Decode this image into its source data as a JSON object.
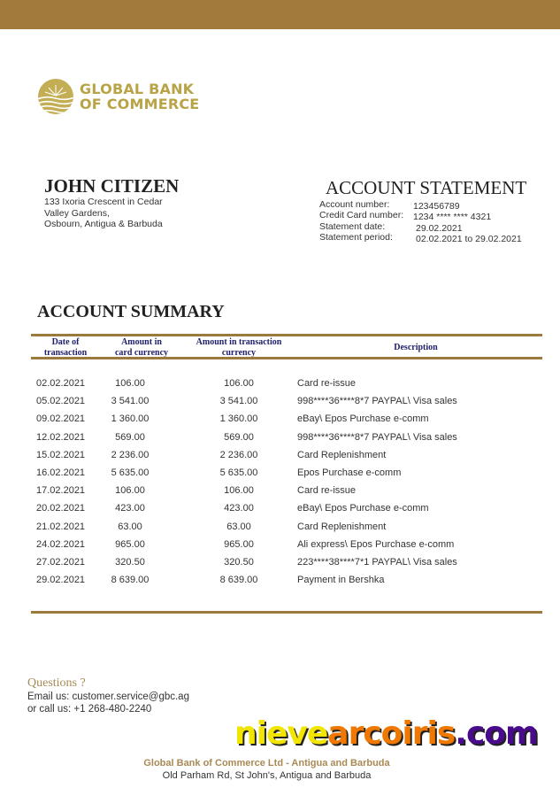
{
  "bank": {
    "logo_line1": "GLOBAL BANK",
    "logo_line2": "OF COMMERCE",
    "brand_color": "#a27b3c",
    "logo_color": "#b9a347"
  },
  "customer": {
    "name": "JOHN CITIZEN",
    "address": [
      "133 Ixoria Crescent in Cedar",
      "Valley Gardens,",
      "Osbourn, Antigua & Barbuda"
    ]
  },
  "statement": {
    "title": "ACCOUNT STATEMENT",
    "labels": [
      "Account number:",
      "Credit Card number:",
      "Statement date:",
      "Statement period:"
    ],
    "values": [
      "123456789",
      "1234 **** **** 4321",
      "29.02.2021",
      "02.02.2021 to 29.02.2021"
    ]
  },
  "summary": {
    "title": "ACCOUNT SUMMARY",
    "headers": {
      "date": [
        "Date of",
        "transaction"
      ],
      "card_amount": [
        "Amount in",
        "card currency"
      ],
      "tx_amount": [
        "Amount in transaction",
        "currency"
      ],
      "description": "Description"
    },
    "rows": [
      {
        "date": "02.02.2021",
        "card": "106.00",
        "tx": "106.00",
        "desc": "Card re-issue"
      },
      {
        "date": "05.02.2021",
        "card": "3 541.00",
        "tx": "3 541.00",
        "desc": "998****36****8*7 PAYPAL\\ Visa sales"
      },
      {
        "date": "09.02.2021",
        "card": "1 360.00",
        "tx": "1 360.00",
        "desc": "eBay\\ Epos Purchase e-comm"
      },
      {
        "date": "12.02.2021",
        "card": "569.00",
        "tx": "569.00",
        "desc": "998****36****8*7 PAYPAL\\ Visa sales"
      },
      {
        "date": "15.02.2021",
        "card": "2 236.00",
        "tx": "2 236.00",
        "desc": "Card Replenishment"
      },
      {
        "date": "16.02.2021",
        "card": "5 635.00",
        "tx": "5 635.00",
        "desc": "Epos Purchase e-comm"
      },
      {
        "date": "17.02.2021",
        "card": "106.00",
        "tx": "106.00",
        "desc": "Card re-issue"
      },
      {
        "date": "20.02.2021",
        "card": "423.00",
        "tx": "423.00",
        "desc": "eBay\\ Epos Purchase e-comm"
      },
      {
        "date": "21.02.2021",
        "card": "63.00",
        "tx": "63.00",
        "desc": "Card Replenishment"
      },
      {
        "date": "24.02.2021",
        "card": "965.00",
        "tx": "965.00",
        "desc": "Ali express\\ Epos Purchase e-comm"
      },
      {
        "date": "27.02.2021",
        "card": "320.50",
        "tx": "320.50",
        "desc": "223****38****7*1 PAYPAL\\ Visa sales"
      },
      {
        "date": "29.02.2021",
        "card": "8 639.00",
        "tx": "8 639.00",
        "desc": "Payment in Bershka"
      }
    ]
  },
  "contact": {
    "heading": "Questions ?",
    "email": "Email us: customer.service@gbc.ag",
    "phone": "or call us: +1 268-480-2240"
  },
  "watermark": {
    "part1": "nieve",
    "part2": "arcoiris",
    "part3": ".com",
    "colors": [
      "#f2e600",
      "#f07800",
      "#4a0a8c"
    ]
  },
  "footer": {
    "company": "Global Bank of Commerce Ltd - Antigua and Barbuda",
    "address": "Old Parham Rd, St John's, Antigua and Barbuda"
  }
}
